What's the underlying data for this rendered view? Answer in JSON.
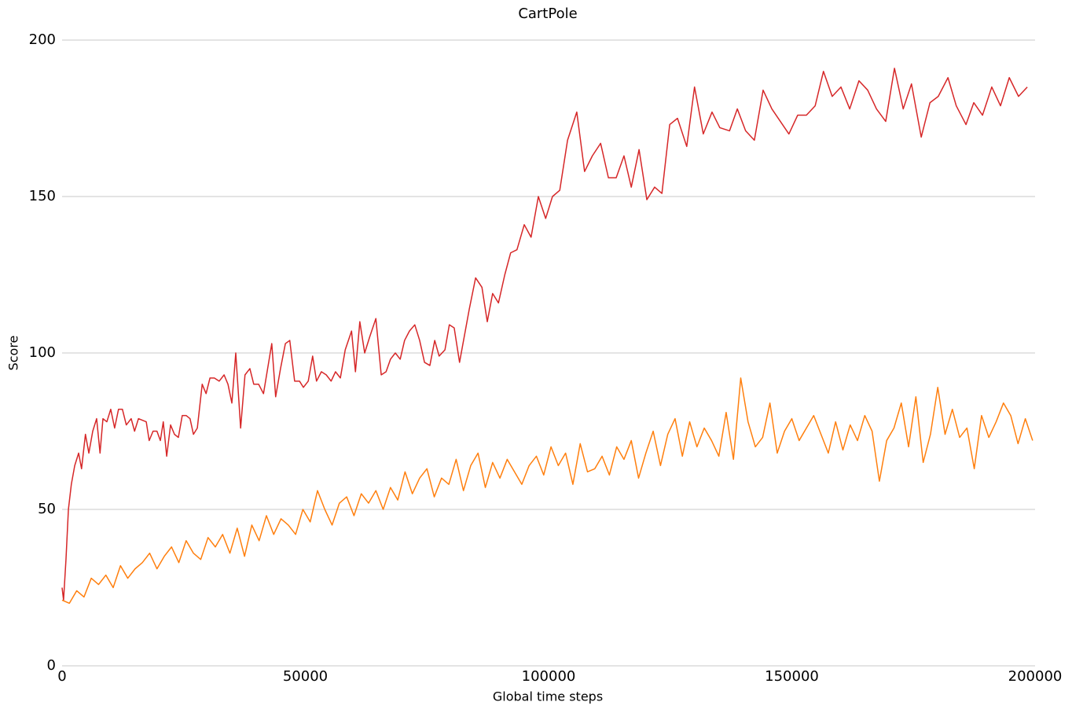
{
  "chart_data": {
    "type": "line",
    "title": "CartPole",
    "xlabel": "Global time steps",
    "ylabel": "Score",
    "xlim": [
      0,
      200000
    ],
    "ylim": [
      0,
      200
    ],
    "xticks": [
      0,
      50000,
      100000,
      150000,
      200000
    ],
    "yticks": [
      0,
      50,
      100,
      150,
      200
    ],
    "grid": true,
    "series": [
      {
        "color": "#d62728",
        "x": [
          0,
          300,
          800,
          1300,
          1900,
          2600,
          3400,
          4000,
          4800,
          5500,
          6300,
          7100,
          7800,
          8400,
          9200,
          10000,
          10800,
          11600,
          12400,
          13200,
          14200,
          14900,
          15700,
          17300,
          17900,
          18700,
          19500,
          20200,
          20800,
          21500,
          22300,
          23100,
          23900,
          24700,
          25500,
          26300,
          27000,
          27800,
          28800,
          29600,
          30400,
          31300,
          32300,
          33300,
          34100,
          34900,
          35700,
          36700,
          37600,
          38600,
          39400,
          40400,
          41400,
          43100,
          43900,
          44900,
          45900,
          46800,
          47800,
          48800,
          49600,
          50600,
          51500,
          52300,
          53300,
          54300,
          55300,
          56200,
          57200,
          58200,
          59500,
          60300,
          61200,
          62200,
          63200,
          64500,
          65600,
          66600,
          67500,
          68500,
          69500,
          70400,
          71400,
          72500,
          73500,
          74500,
          75600,
          76600,
          77500,
          78700,
          79600,
          80600,
          81700,
          83700,
          85000,
          86300,
          87400,
          88500,
          89700,
          91000,
          92200,
          93500,
          95000,
          96400,
          97900,
          99400,
          100800,
          102300,
          103900,
          105800,
          107400,
          109000,
          110700,
          112300,
          113900,
          115500,
          117000,
          118600,
          120200,
          121800,
          123300,
          124900,
          126500,
          128400,
          130000,
          131800,
          133600,
          135200,
          137200,
          138800,
          140500,
          142300,
          144100,
          145900,
          149400,
          151200,
          153000,
          154800,
          156500,
          158300,
          160100,
          161900,
          163800,
          165600,
          167400,
          169300,
          171100,
          172900,
          174600,
          176600,
          178400,
          180100,
          182100,
          183800,
          185800,
          187400,
          189200,
          191100,
          192900,
          194700,
          196600,
          198400
        ],
        "values": [
          25,
          21,
          34,
          50,
          58,
          64,
          68,
          63,
          74,
          68,
          75,
          79,
          68,
          79,
          78,
          82,
          76,
          82,
          82,
          77,
          79,
          75,
          79,
          78,
          72,
          75,
          75,
          72,
          78,
          67,
          77,
          74,
          73,
          80,
          80,
          79,
          74,
          76,
          90,
          87,
          92,
          92,
          91,
          93,
          90,
          84,
          100,
          76,
          93,
          95,
          90,
          90,
          87,
          103,
          86,
          95,
          103,
          104,
          91,
          91,
          89,
          91,
          99,
          91,
          94,
          93,
          91,
          94,
          92,
          101,
          107,
          94,
          110,
          100,
          105,
          111,
          93,
          94,
          98,
          100,
          98,
          104,
          107,
          109,
          104,
          97,
          96,
          104,
          99,
          101,
          109,
          108,
          97,
          114,
          124,
          121,
          110,
          119,
          116,
          125,
          132,
          133,
          141,
          137,
          150,
          143,
          150,
          152,
          168,
          177,
          158,
          163,
          167,
          156,
          156,
          163,
          153,
          165,
          149,
          153,
          151,
          173,
          175,
          166,
          185,
          170,
          177,
          172,
          171,
          178,
          171,
          168,
          184,
          178,
          170,
          176,
          176,
          179,
          190,
          182,
          185,
          178,
          187,
          184,
          178,
          174,
          191,
          178,
          186,
          169,
          180,
          182,
          188,
          179,
          173,
          180,
          176,
          185,
          179,
          188,
          182,
          185
        ]
      },
      {
        "color": "#ff7f0e",
        "x": [
          0,
          1500,
          3000,
          4500,
          6000,
          7500,
          9000,
          10500,
          12000,
          13500,
          15000,
          16500,
          18000,
          19500,
          21000,
          22500,
          24000,
          25500,
          27000,
          28500,
          30000,
          31500,
          33000,
          34500,
          36000,
          37500,
          39000,
          40500,
          42000,
          43500,
          45000,
          46500,
          48000,
          49500,
          51000,
          52500,
          54000,
          55500,
          57000,
          58500,
          60000,
          61500,
          63000,
          64500,
          66000,
          67500,
          69000,
          70500,
          72000,
          73500,
          75000,
          76500,
          78000,
          79500,
          81000,
          82500,
          84000,
          85500,
          87000,
          88500,
          90000,
          91500,
          93000,
          94500,
          96000,
          97500,
          99000,
          100500,
          102000,
          103500,
          105000,
          106500,
          108000,
          109500,
          111000,
          112500,
          114000,
          115500,
          117000,
          118500,
          120000,
          121500,
          123000,
          124500,
          126000,
          127500,
          129000,
          130500,
          132000,
          133500,
          135000,
          136500,
          138000,
          139500,
          141000,
          142500,
          144000,
          145500,
          147000,
          148500,
          150000,
          151500,
          153000,
          154500,
          156000,
          157500,
          159000,
          160500,
          162000,
          163500,
          165000,
          166500,
          168000,
          169500,
          171000,
          172500,
          174000,
          175500,
          177000,
          178500,
          180000,
          181500,
          183000,
          184500,
          186000,
          187500,
          189000,
          190500,
          192000,
          193500,
          195000,
          196500,
          198000,
          199500
        ],
        "values": [
          21,
          20,
          24,
          22,
          28,
          26,
          29,
          25,
          32,
          28,
          31,
          33,
          36,
          31,
          35,
          38,
          33,
          40,
          36,
          34,
          41,
          38,
          42,
          36,
          44,
          35,
          45,
          40,
          48,
          42,
          47,
          45,
          42,
          50,
          46,
          56,
          50,
          45,
          52,
          54,
          48,
          55,
          52,
          56,
          50,
          57,
          53,
          62,
          55,
          60,
          63,
          54,
          60,
          58,
          66,
          56,
          64,
          68,
          57,
          65,
          60,
          66,
          62,
          58,
          64,
          67,
          61,
          70,
          64,
          68,
          58,
          71,
          62,
          63,
          67,
          61,
          70,
          66,
          72,
          60,
          68,
          75,
          64,
          74,
          79,
          67,
          78,
          70,
          76,
          72,
          67,
          81,
          66,
          92,
          78,
          70,
          73,
          84,
          68,
          75,
          79,
          72,
          76,
          80,
          74,
          68,
          78,
          69,
          77,
          72,
          80,
          75,
          59,
          72,
          76,
          84,
          70,
          86,
          65,
          74,
          89,
          74,
          82,
          73,
          76,
          63,
          80,
          73,
          78,
          84,
          80,
          71,
          79,
          72
        ]
      }
    ]
  }
}
